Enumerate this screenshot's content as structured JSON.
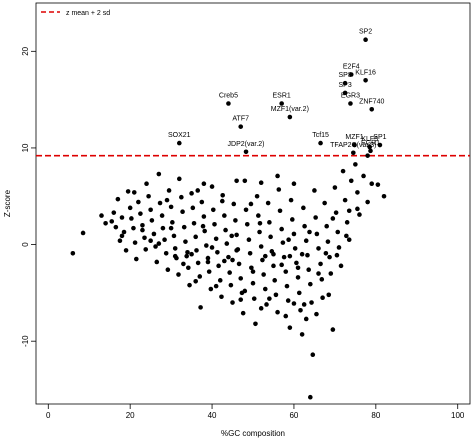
{
  "chart_data": {
    "type": "scatter",
    "title": "",
    "xlabel": "%GC composition",
    "ylabel": "Z-score",
    "xlim": [
      -3,
      103
    ],
    "ylim": [
      -16.5,
      25
    ],
    "xticks": [
      0,
      20,
      40,
      60,
      80,
      100
    ],
    "yticks": [
      -10,
      0,
      10,
      20
    ],
    "threshold": {
      "y": 9.2,
      "label": "z mean + 2 sd",
      "color": "#dd0000",
      "style": "dashed"
    },
    "legend_position": "top-left",
    "labeled_points": [
      {
        "label": "SP2",
        "x": 77.5,
        "y": 21.2
      },
      {
        "label": "E2F4",
        "x": 74,
        "y": 17.6
      },
      {
        "label": "KLF16",
        "x": 77.5,
        "y": 17
      },
      {
        "label": "SP8",
        "x": 72.5,
        "y": 16.7
      },
      {
        "label": "SP3",
        "x": 72.5,
        "y": 15.7
      },
      {
        "label": "EGR3",
        "x": 73.8,
        "y": 14.6
      },
      {
        "label": "ZNF740",
        "x": 79,
        "y": 14
      },
      {
        "label": "Creb5",
        "x": 44,
        "y": 14.6
      },
      {
        "label": "ESR1",
        "x": 57,
        "y": 14.6
      },
      {
        "label": "ATF7",
        "x": 47,
        "y": 12.2
      },
      {
        "label": "MZF1(var.2)",
        "x": 59,
        "y": 13.2
      },
      {
        "label": "SOX21",
        "x": 32,
        "y": 10.5
      },
      {
        "label": "JDP2(var.2)",
        "x": 48.3,
        "y": 9.6
      },
      {
        "label": "Tcf15",
        "x": 66.5,
        "y": 10.5
      },
      {
        "label": "MZF1",
        "x": 74.8,
        "y": 10.3
      },
      {
        "label": "TFAP2C(var.3)",
        "x": 74.5,
        "y": 9.5
      },
      {
        "label": "KLF5",
        "x": 78.5,
        "y": 10.1
      },
      {
        "label": "SP1",
        "x": 81,
        "y": 10.3
      },
      {
        "label": "EGR1",
        "x": 78.7,
        "y": 9.7
      }
    ],
    "unlabeled_points": [
      [
        6,
        -0.9
      ],
      [
        8.5,
        1.2
      ],
      [
        13,
        3
      ],
      [
        14,
        2.2
      ],
      [
        16,
        3.3
      ],
      [
        16.5,
        1.8
      ],
      [
        17.5,
        0.4
      ],
      [
        17,
        4.7
      ],
      [
        18,
        2.8
      ],
      [
        18.5,
        1.3
      ],
      [
        19,
        -0.6
      ],
      [
        19.5,
        5.5
      ],
      [
        20,
        3.8
      ],
      [
        20.3,
        2.7
      ],
      [
        20.8,
        1.7
      ],
      [
        21.2,
        0.2
      ],
      [
        21.5,
        -1.5
      ],
      [
        22,
        4.4
      ],
      [
        22.5,
        3.2
      ],
      [
        23,
        2
      ],
      [
        23.5,
        0.7
      ],
      [
        23.8,
        -0.5
      ],
      [
        24,
        6.3
      ],
      [
        24.5,
        5
      ],
      [
        25,
        3.6
      ],
      [
        25.3,
        2.5
      ],
      [
        25.8,
        1.1
      ],
      [
        26.2,
        -0.2
      ],
      [
        26.5,
        -1.8
      ],
      [
        27,
        7.3
      ],
      [
        27.3,
        4.3
      ],
      [
        27.8,
        3
      ],
      [
        28,
        1.7
      ],
      [
        28.4,
        0.5
      ],
      [
        28.8,
        -0.9
      ],
      [
        29.2,
        -2.6
      ],
      [
        29.5,
        5.6
      ],
      [
        30,
        3.9
      ],
      [
        30.3,
        2.3
      ],
      [
        30.7,
        0.9
      ],
      [
        31,
        -0.4
      ],
      [
        31.3,
        -1.4
      ],
      [
        31.8,
        -3.1
      ],
      [
        32,
        6.8
      ],
      [
        32.5,
        4.9
      ],
      [
        32.8,
        3.4
      ],
      [
        33.2,
        1.8
      ],
      [
        33.5,
        0.3
      ],
      [
        33.8,
        -1.2
      ],
      [
        34.2,
        -2.4
      ],
      [
        34.5,
        -4.2
      ],
      [
        35,
        5.3
      ],
      [
        35.3,
        3.8
      ],
      [
        35.6,
        2.2
      ],
      [
        36,
        0.8
      ],
      [
        36.2,
        -0.6
      ],
      [
        36.6,
        -1.9
      ],
      [
        37,
        -3.3
      ],
      [
        37.2,
        -6.5
      ],
      [
        37.5,
        4.4
      ],
      [
        38,
        2.9
      ],
      [
        38.2,
        1.4
      ],
      [
        38.6,
        -0.1
      ],
      [
        39,
        -1.4
      ],
      [
        39.3,
        -2.8
      ],
      [
        39.7,
        -4.6
      ],
      [
        40,
        6
      ],
      [
        40.3,
        3.6
      ],
      [
        40.6,
        2.1
      ],
      [
        41,
        0.6
      ],
      [
        41.3,
        -0.8
      ],
      [
        41.6,
        -2.2
      ],
      [
        42,
        -3.7
      ],
      [
        42.3,
        -5.4
      ],
      [
        42.6,
        5.1
      ],
      [
        43,
        3
      ],
      [
        43.3,
        1.5
      ],
      [
        43.6,
        0.1
      ],
      [
        44,
        -1.3
      ],
      [
        44.3,
        -2.9
      ],
      [
        44.6,
        -4.2
      ],
      [
        45,
        -6
      ],
      [
        45.3,
        4.2
      ],
      [
        45.7,
        2.5
      ],
      [
        46,
        1
      ],
      [
        46.3,
        -0.5
      ],
      [
        46.6,
        -2
      ],
      [
        47,
        -3.5
      ],
      [
        47.3,
        -5
      ],
      [
        47.6,
        -7.1
      ],
      [
        48,
        6.6
      ],
      [
        48.3,
        3.6
      ],
      [
        48.6,
        2.1
      ],
      [
        49,
        0.5
      ],
      [
        49.3,
        -0.9
      ],
      [
        49.6,
        -2.4
      ],
      [
        50,
        -4
      ],
      [
        50.3,
        -5.6
      ],
      [
        50.6,
        -8.2
      ],
      [
        51,
        5
      ],
      [
        51.3,
        3
      ],
      [
        51.6,
        1.3
      ],
      [
        52,
        -0.2
      ],
      [
        52.3,
        -1.6
      ],
      [
        52.6,
        -3.1
      ],
      [
        53,
        -4.6
      ],
      [
        53.3,
        -6.2
      ],
      [
        53.7,
        4.3
      ],
      [
        54,
        2.3
      ],
      [
        54.3,
        0.8
      ],
      [
        54.6,
        -0.7
      ],
      [
        55,
        -2.2
      ],
      [
        55.3,
        -3.7
      ],
      [
        55.6,
        -5.2
      ],
      [
        56,
        -7
      ],
      [
        56.3,
        5.7
      ],
      [
        56.6,
        3.5
      ],
      [
        57,
        1.6
      ],
      [
        57.3,
        0.2
      ],
      [
        57.6,
        -1.3
      ],
      [
        58,
        -2.8
      ],
      [
        58.3,
        -4.3
      ],
      [
        58.6,
        -5.8
      ],
      [
        59,
        -8.6
      ],
      [
        59.3,
        4.6
      ],
      [
        59.6,
        2.6
      ],
      [
        60,
        1.1
      ],
      [
        60.3,
        -0.4
      ],
      [
        60.6,
        -1.9
      ],
      [
        61,
        -3.4
      ],
      [
        61.3,
        -5
      ],
      [
        61.6,
        -6.8
      ],
      [
        62,
        -9.3
      ],
      [
        62.3,
        3.8
      ],
      [
        62.6,
        1.9
      ],
      [
        63,
        0.4
      ],
      [
        63.3,
        -1.1
      ],
      [
        63.6,
        -2.6
      ],
      [
        64,
        -4.1
      ],
      [
        64.3,
        -6
      ],
      [
        64.6,
        -11.4
      ],
      [
        65,
        5.6
      ],
      [
        65.3,
        2.8
      ],
      [
        65.6,
        1.1
      ],
      [
        66,
        -0.4
      ],
      [
        66.5,
        -2
      ],
      [
        66.8,
        -3.6
      ],
      [
        67,
        -5.5
      ],
      [
        67.5,
        4.3
      ],
      [
        68,
        1.9
      ],
      [
        68.3,
        0.3
      ],
      [
        68.7,
        -1.3
      ],
      [
        69,
        -3
      ],
      [
        69.5,
        -8.8
      ],
      [
        70,
        5.9
      ],
      [
        70.3,
        3.3
      ],
      [
        70.7,
        1.3
      ],
      [
        71,
        -0.3
      ],
      [
        71.5,
        -2.2
      ],
      [
        72,
        7.6
      ],
      [
        72.5,
        4.6
      ],
      [
        73,
        2.3
      ],
      [
        73.5,
        0.5
      ],
      [
        74,
        6.6
      ],
      [
        75,
        8.3
      ],
      [
        75.5,
        5.4
      ],
      [
        76,
        3.1
      ],
      [
        77,
        7.1
      ],
      [
        78,
        9.2
      ],
      [
        79,
        6.3
      ],
      [
        80.5,
        6.2
      ],
      [
        82,
        5
      ],
      [
        64,
        -15.8
      ],
      [
        38,
        6.3
      ],
      [
        46,
        6.6
      ],
      [
        52,
        6.4
      ],
      [
        60,
        6.3
      ],
      [
        56,
        7.1
      ],
      [
        35,
        -1
      ],
      [
        43,
        -1.7
      ],
      [
        50,
        -2.8
      ],
      [
        57,
        -2.1
      ],
      [
        62,
        -1
      ],
      [
        66,
        -3
      ],
      [
        30,
        1.7
      ],
      [
        34,
        -0.8
      ],
      [
        40,
        -0.3
      ],
      [
        46,
        -0.6
      ],
      [
        53,
        -1.2
      ],
      [
        59,
        -1.2
      ],
      [
        27,
        0.1
      ],
      [
        25,
        0.4
      ],
      [
        23,
        1.5
      ],
      [
        37.8,
        1.9
      ],
      [
        44.8,
        0.9
      ],
      [
        51.7,
        2.2
      ],
      [
        58.7,
        0.5
      ],
      [
        63.8,
        1.3
      ],
      [
        67.8,
        -0.9
      ],
      [
        33,
        -2
      ],
      [
        39,
        -1.8
      ],
      [
        45,
        -1.6
      ],
      [
        55,
        -1
      ],
      [
        61,
        -2.4
      ],
      [
        48,
        -4.8
      ],
      [
        54,
        -5.6
      ],
      [
        60,
        -6.1
      ],
      [
        52,
        -6.6
      ],
      [
        58,
        -7.4
      ],
      [
        63,
        -7.7
      ],
      [
        47,
        -5.7
      ],
      [
        41,
        -4.3
      ],
      [
        36,
        -3.8
      ],
      [
        31,
        -1.2
      ],
      [
        68.5,
        -5.2
      ],
      [
        65.5,
        -7.2
      ],
      [
        62.5,
        -6.2
      ],
      [
        49.5,
        4.2
      ],
      [
        42.5,
        4.5
      ],
      [
        36.5,
        5.6
      ],
      [
        29,
        4.6
      ],
      [
        21,
        5.4
      ],
      [
        18,
        0.9
      ],
      [
        15.5,
        2.4
      ],
      [
        70.5,
        -1.1
      ],
      [
        72.8,
        0.9
      ],
      [
        75.5,
        3.7
      ],
      [
        78,
        4.4
      ],
      [
        73.5,
        3.5
      ],
      [
        69.5,
        2.7
      ]
    ]
  }
}
